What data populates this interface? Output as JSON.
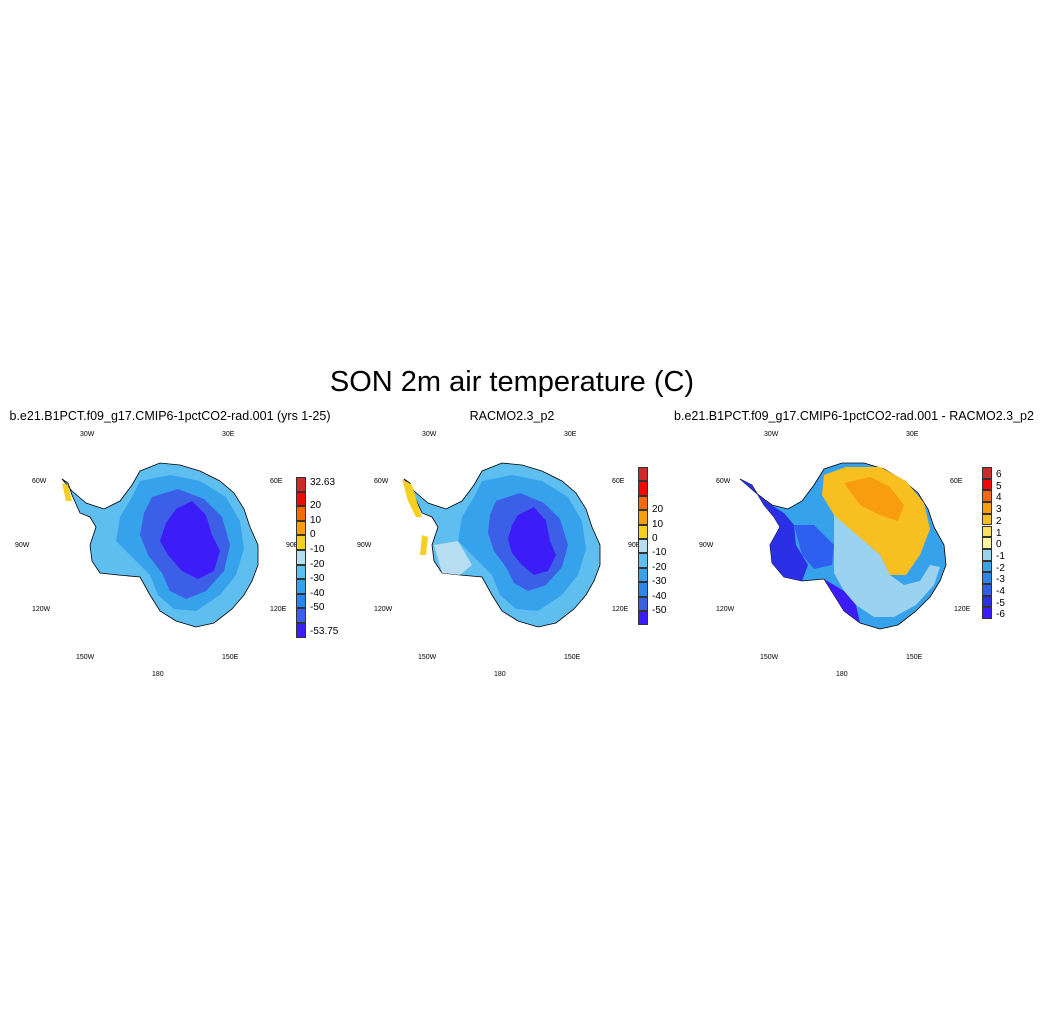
{
  "figure": {
    "title": "SON 2m air temperature (C)"
  },
  "lon_labels": [
    "30W",
    "30E",
    "60W",
    "60E",
    "90W",
    "90E",
    "120W",
    "120E",
    "150W",
    "150E",
    "180"
  ],
  "panels": [
    {
      "title": "b.e21.B1PCT.f09_g17.CMIP6-1pctCO2-rad.001 (yrs 1-25)",
      "colorbar": {
        "colors": [
          "#3c1cf7",
          "#3b5fe6",
          "#2a86ec",
          "#37a2ec",
          "#5ebef0",
          "#b7ddf0",
          "#f7cf20",
          "#f79d0e",
          "#f76a09",
          "#f00a05",
          "#cf2a2a"
        ],
        "labels": [
          "32.63",
          "20",
          "10",
          "0",
          "-10",
          "-20",
          "-30",
          "-40",
          "-50",
          "-53.75"
        ]
      }
    },
    {
      "title": "RACMO2.3_p2",
      "colorbar": {
        "colors": [
          "#3c1cf7",
          "#3b5fe6",
          "#2a86ec",
          "#37a2ec",
          "#5ebef0",
          "#b7ddf0",
          "#f7cf20",
          "#f79d0e",
          "#f76a09",
          "#f00a05",
          "#cf2a2a"
        ],
        "labels": [
          "20",
          "10",
          "0",
          "-10",
          "-20",
          "-30",
          "-40",
          "-50"
        ]
      }
    },
    {
      "title": "b.e21.B1PCT.f09_g17.CMIP6-1pctCO2-rad.001 - RACMO2.3_p2",
      "colorbar": {
        "colors": [
          "#3c1cf7",
          "#2b2fe6",
          "#2f5fee",
          "#2a86ec",
          "#37a2ec",
          "#9ad2f0",
          "#fff5a0",
          "#fbe060",
          "#f7c020",
          "#f79d0e",
          "#f76a09",
          "#f00a05",
          "#cf2a2a"
        ],
        "labels": [
          "6",
          "5",
          "4",
          "3",
          "2",
          "1",
          "0",
          "-1",
          "-2",
          "-3",
          "-4",
          "-5",
          "-6"
        ]
      }
    }
  ]
}
